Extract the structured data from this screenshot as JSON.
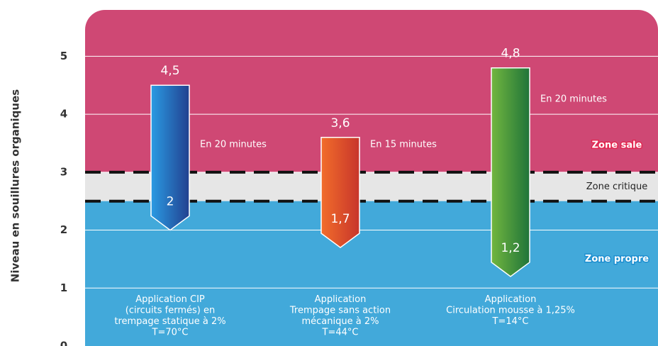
{
  "chart_data": {
    "type": "range-arrow",
    "y_label": "Niveau en souillures organiques",
    "ylim": [
      0,
      5.8
    ],
    "yticks": [
      0,
      1,
      2,
      3,
      4,
      5
    ],
    "grid": true,
    "categories": [
      "Application CIP\n(circuits fermés) en\ntrempage statique à 2%\nT=70°C",
      "Application\nTrempage sans action\nmécanique à 2%\nT=44°C",
      "Application\nCirculation mousse à 1,25%\nT=14°C"
    ],
    "start": [
      4.5,
      3.6,
      4.8
    ],
    "start_labels": [
      "4,5",
      "3,6",
      "4,8"
    ],
    "end": [
      2,
      1.7,
      1.2
    ],
    "end_labels": [
      "2",
      "1,7",
      "1,2"
    ],
    "durations": [
      "En 20 minutes",
      "En 15 minutes",
      "En 20 minutes"
    ],
    "colors": [
      [
        "#2a9be3",
        "#22408f"
      ],
      [
        "#f26d2b",
        "#c7352b"
      ],
      [
        "#72b63f",
        "#1f7439"
      ]
    ],
    "thresholds": [
      3,
      2.5
    ],
    "zones": [
      {
        "label": "Zone sale",
        "color": "#cf4874"
      },
      {
        "label": "Zone critique",
        "color": "#e6e6e6"
      },
      {
        "label": "Zone propre",
        "color": "#42a9da"
      }
    ]
  }
}
